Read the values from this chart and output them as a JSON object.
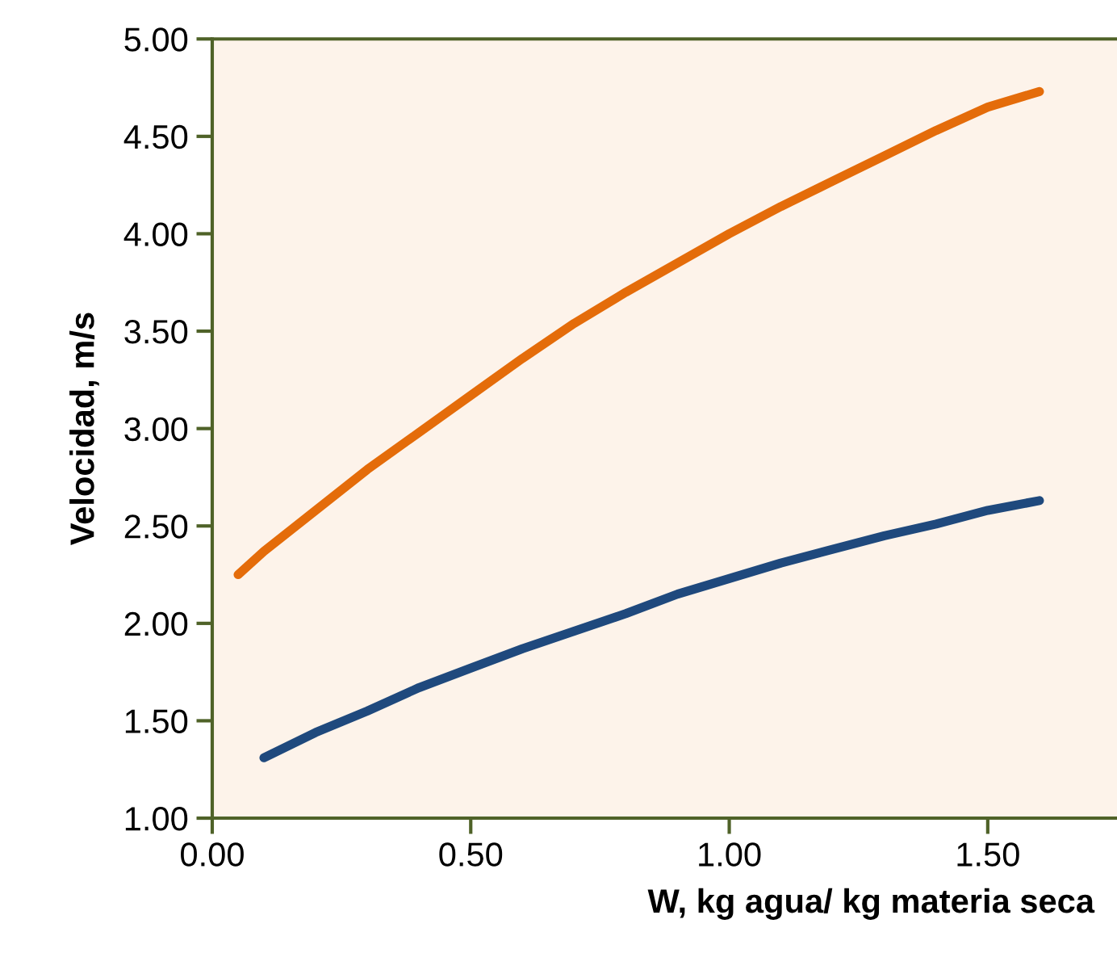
{
  "chart_data": {
    "type": "line",
    "xlabel": "W, kg agua/ kg materia seca",
    "ylabel": "Velocidad, m/s",
    "xlim": [
      0,
      1.75
    ],
    "xticks": [
      {
        "value": 0,
        "label": "0.00"
      },
      {
        "value": 0.5,
        "label": "0.50"
      },
      {
        "value": 1,
        "label": "1.00"
      },
      {
        "value": 1.5,
        "label": "1.50"
      }
    ],
    "ylim": [
      1,
      5
    ],
    "yticks": [
      {
        "value": 1,
        "label": "1.00"
      },
      {
        "value": 1.5,
        "label": "1.50"
      },
      {
        "value": 2,
        "label": "2.00"
      },
      {
        "value": 2.5,
        "label": "2.50"
      },
      {
        "value": 3,
        "label": "3.00"
      },
      {
        "value": 3.5,
        "label": "3.50"
      },
      {
        "value": 4,
        "label": "4.00"
      },
      {
        "value": 4.5,
        "label": "4.50"
      },
      {
        "value": 5,
        "label": "5.00"
      }
    ],
    "grid": false,
    "legend": false,
    "marker": "none",
    "line_style": "solid",
    "series": [
      {
        "color": "#e46c0a",
        "x": [
          0.05,
          0.1,
          0.3,
          0.4,
          0.5,
          0.6,
          0.7,
          0.8,
          0.9,
          1.0,
          1.1,
          1.2,
          1.3,
          1.4,
          1.5,
          1.6
        ],
        "values": [
          2.25,
          2.37,
          2.79,
          2.98,
          3.17,
          3.36,
          3.54,
          3.7,
          3.85,
          4.0,
          4.14,
          4.27,
          4.4,
          4.53,
          4.65,
          4.73
        ]
      },
      {
        "color": "#1f497d",
        "x": [
          0.1,
          0.2,
          0.3,
          0.4,
          0.5,
          0.6,
          0.7,
          0.8,
          0.9,
          1.0,
          1.1,
          1.2,
          1.3,
          1.4,
          1.5,
          1.6
        ],
        "values": [
          1.31,
          1.44,
          1.55,
          1.67,
          1.77,
          1.87,
          1.96,
          2.05,
          2.15,
          2.23,
          2.31,
          2.38,
          2.45,
          2.51,
          2.58,
          2.63
        ]
      }
    ]
  }
}
